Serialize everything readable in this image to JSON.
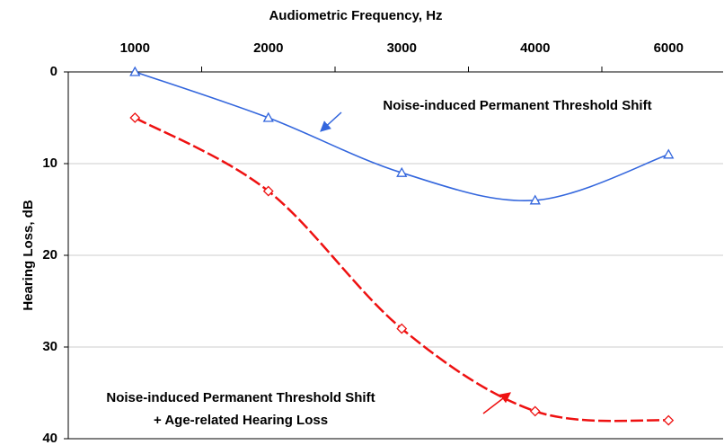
{
  "chart_data": {
    "type": "line",
    "x_label": "Audiometric Frequency, Hz",
    "y_label": "Hearing Loss, dB",
    "categories": [
      "1000",
      "2000",
      "3000",
      "4000",
      "6000"
    ],
    "series": [
      {
        "color": "#3366dd",
        "marker": "triangle",
        "dashed": false,
        "values": [
          0,
          5,
          11,
          14,
          9
        ]
      },
      {
        "color": "#ee1111",
        "marker": "diamond",
        "dashed": true,
        "values": [
          5,
          13,
          28,
          37,
          38
        ]
      }
    ],
    "annotations": [
      {
        "lines": [
          "Noise-induced Permanent Threshold Shift"
        ]
      },
      {
        "lines": [
          "Noise-induced Permanent Threshold Shift",
          "+ Age-related Hearing Loss"
        ]
      }
    ],
    "ylim": [
      0,
      40
    ],
    "yticks": [
      0,
      10,
      20,
      30,
      40
    ],
    "y_reversed": true,
    "grid": true,
    "x_axis_position": "top"
  }
}
